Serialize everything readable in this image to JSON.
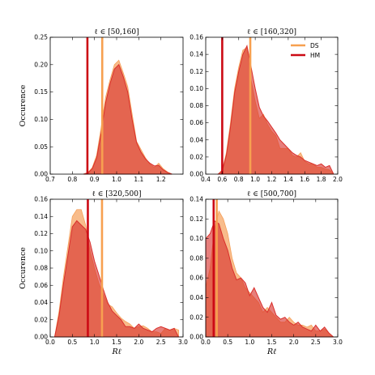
{
  "chart_data": [
    {
      "type": "area",
      "title": "ℓ ∈ [50,160]",
      "xlabel": "",
      "ylabel": "Occurence",
      "xlim": [
        0.7,
        1.3
      ],
      "ylim": [
        0,
        0.25
      ],
      "xticks": [
        "0.7",
        "0.8",
        "0.9",
        "1.0",
        "1.1",
        "1.2"
      ],
      "yticks": [
        "0.00",
        "0.05",
        "0.10",
        "0.15",
        "0.20",
        "0.25"
      ],
      "x": [
        0.85,
        0.87,
        0.89,
        0.91,
        0.93,
        0.95,
        0.97,
        0.99,
        1.01,
        1.03,
        1.05,
        1.07,
        1.09,
        1.11,
        1.13,
        1.15,
        1.17,
        1.19,
        1.21,
        1.23,
        1.25
      ],
      "series": [
        {
          "name": "DS",
          "color": "#f5a05a",
          "values": [
            0,
            0.003,
            0.012,
            0.035,
            0.085,
            0.14,
            0.172,
            0.2,
            0.208,
            0.185,
            0.16,
            0.11,
            0.06,
            0.045,
            0.03,
            0.018,
            0.012,
            0.02,
            0.01,
            0.004,
            0
          ]
        },
        {
          "name": "HM",
          "color": "#d9302c",
          "values": [
            0,
            0.002,
            0.01,
            0.03,
            0.075,
            0.13,
            0.165,
            0.192,
            0.2,
            0.178,
            0.15,
            0.1,
            0.058,
            0.04,
            0.028,
            0.02,
            0.015,
            0.016,
            0.008,
            0.003,
            0
          ]
        }
      ],
      "vlines": [
        {
          "name": "DS",
          "x": 0.935
        },
        {
          "name": "HM",
          "x": 0.868
        }
      ]
    },
    {
      "type": "area",
      "title": "ℓ ∈ [160,320]",
      "xlabel": "",
      "ylabel": "",
      "xlim": [
        0.4,
        2.0
      ],
      "ylim": [
        0,
        0.16
      ],
      "xticks": [
        "0.4",
        "0.6",
        "0.8",
        "1.0",
        "1.2",
        "1.4",
        "1.6",
        "1.8",
        "2.0"
      ],
      "yticks": [
        "0.00",
        "0.02",
        "0.04",
        "0.06",
        "0.08",
        "0.10",
        "0.12",
        "0.14",
        "0.16"
      ],
      "legend": {
        "position": "top-right",
        "entries": [
          "DS",
          "HM"
        ]
      },
      "x": [
        0.55,
        0.6,
        0.65,
        0.7,
        0.75,
        0.8,
        0.85,
        0.9,
        0.95,
        1.0,
        1.05,
        1.1,
        1.15,
        1.2,
        1.25,
        1.3,
        1.35,
        1.4,
        1.45,
        1.5,
        1.55,
        1.6,
        1.65,
        1.7,
        1.75,
        1.8,
        1.85,
        1.9,
        1.95
      ],
      "series": [
        {
          "name": "DS",
          "color": "#f5a05a",
          "values": [
            0,
            0.005,
            0.025,
            0.06,
            0.1,
            0.125,
            0.145,
            0.148,
            0.11,
            0.085,
            0.065,
            0.07,
            0.058,
            0.05,
            0.045,
            0.03,
            0.03,
            0.03,
            0.022,
            0.02,
            0.025,
            0.015,
            0.012,
            0.012,
            0.008,
            0.008,
            0.006,
            0.005,
            0
          ]
        },
        {
          "name": "HM",
          "color": "#d9302c",
          "values": [
            0,
            0.004,
            0.022,
            0.055,
            0.095,
            0.12,
            0.14,
            0.15,
            0.125,
            0.1,
            0.078,
            0.068,
            0.062,
            0.055,
            0.048,
            0.04,
            0.035,
            0.03,
            0.025,
            0.022,
            0.02,
            0.016,
            0.014,
            0.012,
            0.01,
            0.012,
            0.008,
            0.01,
            0
          ]
        }
      ],
      "vlines": [
        {
          "name": "DS",
          "x": 0.94
        },
        {
          "name": "HM",
          "x": 0.6
        }
      ]
    },
    {
      "type": "area",
      "title": "ℓ ∈ [320,500]",
      "xlabel": "Rℓ",
      "ylabel": "Occurence",
      "xlim": [
        0,
        3
      ],
      "ylim": [
        0,
        0.16
      ],
      "xticks": [
        "0.0",
        "0.5",
        "1.0",
        "1.5",
        "2.0",
        "2.5",
        "3.0"
      ],
      "yticks": [
        "0.00",
        "0.02",
        "0.04",
        "0.06",
        "0.08",
        "0.10",
        "0.12",
        "0.14",
        "0.16"
      ],
      "x": [
        0.1,
        0.2,
        0.3,
        0.4,
        0.5,
        0.6,
        0.7,
        0.8,
        0.9,
        1.0,
        1.1,
        1.2,
        1.3,
        1.4,
        1.5,
        1.6,
        1.7,
        1.8,
        1.9,
        2.0,
        2.1,
        2.2,
        2.3,
        2.4,
        2.5,
        2.6,
        2.7,
        2.8,
        2.9
      ],
      "series": [
        {
          "name": "DS",
          "color": "#f5a05a",
          "values": [
            0,
            0.03,
            0.07,
            0.105,
            0.14,
            0.148,
            0.148,
            0.13,
            0.1,
            0.08,
            0.062,
            0.05,
            0.038,
            0.035,
            0.028,
            0.022,
            0.018,
            0.015,
            0.01,
            0.012,
            0.013,
            0.01,
            0.006,
            0.006,
            0.004,
            0.01,
            0.008,
            0.01,
            0.008
          ]
        },
        {
          "name": "HM",
          "color": "#d9302c",
          "values": [
            0,
            0.025,
            0.062,
            0.095,
            0.128,
            0.135,
            0.13,
            0.125,
            0.11,
            0.088,
            0.072,
            0.055,
            0.04,
            0.03,
            0.025,
            0.02,
            0.012,
            0.012,
            0.01,
            0.015,
            0.01,
            0.008,
            0.006,
            0.01,
            0.012,
            0.01,
            0.008,
            0.01,
            0
          ]
        }
      ],
      "vlines": [
        {
          "name": "DS",
          "x": 1.17
        },
        {
          "name": "HM",
          "x": 0.85
        }
      ]
    },
    {
      "type": "area",
      "title": "ℓ ∈ [500,700]",
      "xlabel": "Rℓ",
      "ylabel": "",
      "xlim": [
        0,
        3
      ],
      "ylim": [
        0,
        0.14
      ],
      "xticks": [
        "0.0",
        "0.5",
        "1.0",
        "1.5",
        "2.0",
        "2.5",
        "3.0"
      ],
      "yticks": [
        "0.00",
        "0.02",
        "0.04",
        "0.06",
        "0.08",
        "0.10",
        "0.12",
        "0.14"
      ],
      "x": [
        0.0,
        0.1,
        0.2,
        0.3,
        0.4,
        0.5,
        0.6,
        0.7,
        0.8,
        0.9,
        1.0,
        1.1,
        1.2,
        1.3,
        1.4,
        1.5,
        1.6,
        1.7,
        1.8,
        1.9,
        2.0,
        2.1,
        2.2,
        2.3,
        2.4,
        2.5,
        2.6,
        2.7,
        2.8,
        2.9
      ],
      "series": [
        {
          "name": "DS",
          "color": "#f5a05a",
          "values": [
            0.05,
            0.07,
            0.11,
            0.128,
            0.12,
            0.105,
            0.08,
            0.065,
            0.06,
            0.05,
            0.045,
            0.04,
            0.035,
            0.025,
            0.03,
            0.025,
            0.02,
            0.015,
            0.015,
            0.02,
            0.015,
            0.012,
            0.012,
            0.01,
            0.012,
            0.006,
            0.006,
            0.008,
            0.004,
            0
          ]
        },
        {
          "name": "HM",
          "color": "#d9302c",
          "values": [
            0.1,
            0.105,
            0.118,
            0.115,
            0.1,
            0.088,
            0.07,
            0.058,
            0.06,
            0.055,
            0.042,
            0.05,
            0.04,
            0.03,
            0.025,
            0.035,
            0.022,
            0.018,
            0.02,
            0.015,
            0.012,
            0.015,
            0.01,
            0.008,
            0.006,
            0.012,
            0.006,
            0.01,
            0.004,
            0
          ]
        }
      ],
      "vlines": [
        {
          "name": "DS",
          "x": 0.25
        },
        {
          "name": "HM",
          "x": 0.18
        }
      ]
    }
  ]
}
